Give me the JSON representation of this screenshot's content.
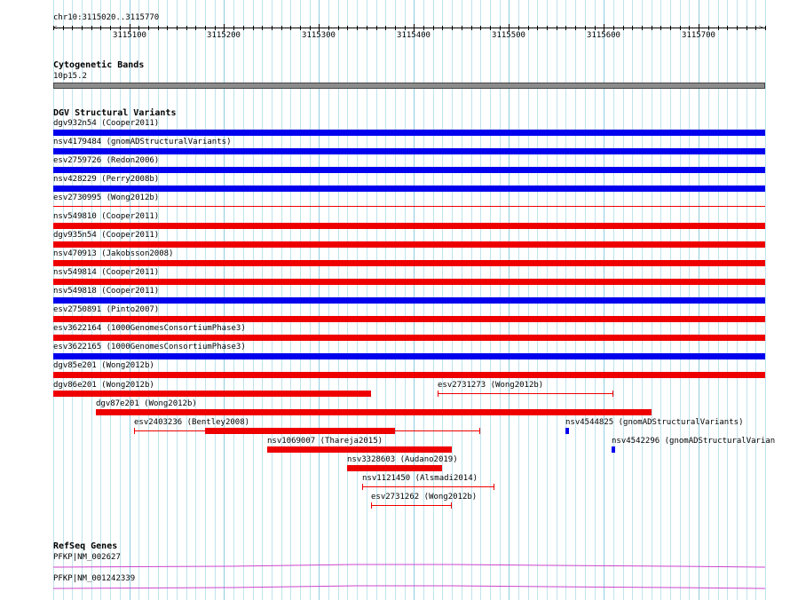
{
  "region_label": "chr10:3115020..3115770",
  "ruler": {
    "ticks": [
      "3115100",
      "3115200",
      "3115300",
      "3115400",
      "3115500",
      "3115600",
      "3115700"
    ]
  },
  "cytoband": {
    "title": "Cytogenetic Bands",
    "band_label": "10p15.2",
    "color": "#8c8c8c"
  },
  "dgv": {
    "title": "DGV Structural Variants",
    "colors": {
      "gain": "#0000ee",
      "loss": "#ee0000"
    },
    "full_rows": [
      {
        "label": "dgv932n54 (Cooper2011)",
        "color": "gain"
      },
      {
        "label": "nsv4179484 (gnomADStructuralVariants)",
        "color": "gain"
      },
      {
        "label": "esv2759726 (Redon2006)",
        "color": "gain"
      },
      {
        "label": "nsv428229 (Perry2008b)",
        "color": "gain"
      },
      {
        "label": "esv2730995 (Wong2012b)",
        "color": "loss_thin"
      },
      {
        "label": "nsv549810 (Cooper2011)",
        "color": "loss"
      },
      {
        "label": "dgv935n54 (Cooper2011)",
        "color": "loss"
      },
      {
        "label": "nsv470913 (Jakobsson2008)",
        "color": "loss"
      },
      {
        "label": "nsv549814 (Cooper2011)",
        "color": "loss"
      },
      {
        "label": "nsv549818 (Cooper2011)",
        "color": "gain"
      },
      {
        "label": "esv2750891 (Pinto2007)",
        "color": "loss"
      },
      {
        "label": "esv3622164 (1000GenomesConsortiumPhase3)",
        "color": "loss"
      },
      {
        "label": "esv3622165 (1000GenomesConsortiumPhase3)",
        "color": "gain"
      },
      {
        "label": "dgv85e201 (Wong2012b)",
        "color": "loss"
      }
    ],
    "partial": [
      {
        "label": "dgv86e201 (Wong2012b)",
        "start": 3115020,
        "end": 3115355,
        "style": "bar",
        "color": "loss"
      },
      {
        "label": "esv2731273 (Wong2012b)",
        "start": 3115425,
        "end": 3115610,
        "style": "whisker",
        "color": "loss"
      },
      {
        "label": "dgv87e201 (Wong2012b)",
        "start": 3115065,
        "end": 3115650,
        "style": "bar",
        "color": "loss"
      },
      {
        "label": "esv2403236 (Bentley2008)",
        "start": 3115105,
        "end": 3115470,
        "style": "whisker",
        "core": [
          3115180,
          3115380
        ],
        "color": "loss"
      },
      {
        "label": "nsv4544825 (gnomADStructuralVariants)",
        "start": 3115560,
        "end": 3115563,
        "style": "bar",
        "color": "gain"
      },
      {
        "label": "nsv1069007 (Thareja2015)",
        "start": 3115245,
        "end": 3115440,
        "style": "bar",
        "color": "loss"
      },
      {
        "label": "nsv4542296 (gnomADStructuralVarian",
        "start": 3115608,
        "end": 3115612,
        "style": "bar",
        "color": "gain"
      },
      {
        "label": "nsv3328603 (Audano2019)",
        "start": 3115330,
        "end": 3115430,
        "style": "bar",
        "color": "loss"
      },
      {
        "label": "nsv1121450 (Alsmadi2014)",
        "start": 3115345,
        "end": 3115485,
        "style": "whisker",
        "color": "loss"
      },
      {
        "label": "esv2731262 (Wong2012b)",
        "start": 3115355,
        "end": 3115440,
        "style": "whisker",
        "color": "loss"
      }
    ]
  },
  "refseq": {
    "title": "RefSeq Genes",
    "color": "#cc44cc",
    "genes": [
      {
        "label": "PFKP|NM_002627"
      },
      {
        "label": "PFKP|NM_001242339"
      }
    ]
  }
}
